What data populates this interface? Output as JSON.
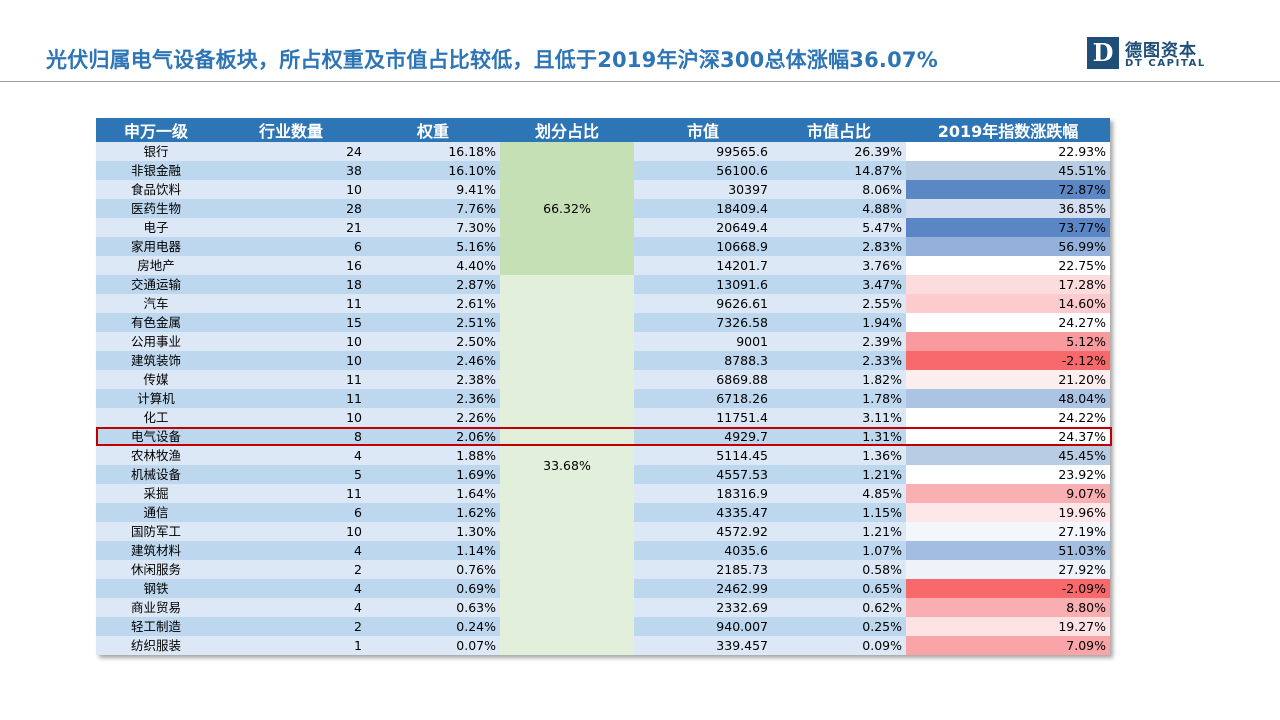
{
  "title": "光伏归属电气设备板块，所占权重及市值占比较低，且低于2019年沪深300总体涨幅36.07%",
  "logo": {
    "mark": "D",
    "cn": "德图资本",
    "en": "DT CAPITAL"
  },
  "colors": {
    "accent": "#2e75b6",
    "highlight_border": "#c00000",
    "share_top": "#c5e0b4",
    "share_bottom": "#e2efda"
  },
  "table": {
    "headers": [
      "申万一级",
      "行业数量",
      "权重",
      "划分占比",
      "市值",
      "市值占比",
      "2019年指数涨跌幅"
    ],
    "share_top": "66.32%",
    "share_bottom": "33.68%",
    "highlighted_row": "电气设备",
    "rows": [
      {
        "name": "银行",
        "count": "24",
        "weight": "16.18%",
        "mcap": "99565.6",
        "mshare": "26.39%",
        "change": "22.93%",
        "change_color": "#ffffff"
      },
      {
        "name": "非银金融",
        "count": "38",
        "weight": "16.10%",
        "mcap": "56100.6",
        "mshare": "14.87%",
        "change": "45.51%",
        "change_color": "#b8cce4"
      },
      {
        "name": "食品饮料",
        "count": "10",
        "weight": "9.41%",
        "mcap": "30397",
        "mshare": "8.06%",
        "change": "72.87%",
        "change_color": "#5b87c5"
      },
      {
        "name": "医药生物",
        "count": "28",
        "weight": "7.76%",
        "mcap": "18409.4",
        "mshare": "4.88%",
        "change": "36.85%",
        "change_color": "#d3dff0"
      },
      {
        "name": "电子",
        "count": "21",
        "weight": "7.30%",
        "mcap": "20649.4",
        "mshare": "5.47%",
        "change": "73.77%",
        "change_color": "#5a86c5"
      },
      {
        "name": "家用电器",
        "count": "6",
        "weight": "5.16%",
        "mcap": "10668.9",
        "mshare": "2.83%",
        "change": "56.99%",
        "change_color": "#93b1da"
      },
      {
        "name": "房地产",
        "count": "16",
        "weight": "4.40%",
        "mcap": "14201.7",
        "mshare": "3.76%",
        "change": "22.75%",
        "change_color": "#ffffff"
      },
      {
        "name": "交通运输",
        "count": "18",
        "weight": "2.87%",
        "mcap": "13091.6",
        "mshare": "3.47%",
        "change": "17.28%",
        "change_color": "#fcdcdd"
      },
      {
        "name": "汽车",
        "count": "11",
        "weight": "2.61%",
        "mcap": "9626.61",
        "mshare": "2.55%",
        "change": "14.60%",
        "change_color": "#fbcbcd"
      },
      {
        "name": "有色金属",
        "count": "15",
        "weight": "2.51%",
        "mcap": "7326.58",
        "mshare": "1.94%",
        "change": "24.27%",
        "change_color": "#ffffff"
      },
      {
        "name": "公用事业",
        "count": "10",
        "weight": "2.50%",
        "mcap": "9001",
        "mshare": "2.39%",
        "change": "5.12%",
        "change_color": "#f89a9e"
      },
      {
        "name": "建筑装饰",
        "count": "10",
        "weight": "2.46%",
        "mcap": "8788.3",
        "mshare": "2.33%",
        "change": "-2.12%",
        "change_color": "#f8696b"
      },
      {
        "name": "传媒",
        "count": "11",
        "weight": "2.38%",
        "mcap": "6869.88",
        "mshare": "1.82%",
        "change": "21.20%",
        "change_color": "#fdeeee"
      },
      {
        "name": "计算机",
        "count": "11",
        "weight": "2.36%",
        "mcap": "6718.26",
        "mshare": "1.78%",
        "change": "48.04%",
        "change_color": "#acc4e4"
      },
      {
        "name": "化工",
        "count": "10",
        "weight": "2.26%",
        "mcap": "11751.4",
        "mshare": "3.11%",
        "change": "24.22%",
        "change_color": "#ffffff"
      },
      {
        "name": "电气设备",
        "count": "8",
        "weight": "2.06%",
        "mcap": "4929.7",
        "mshare": "1.31%",
        "change": "24.37%",
        "change_color": "#ffffff"
      },
      {
        "name": "农林牧渔",
        "count": "4",
        "weight": "1.88%",
        "mcap": "5114.45",
        "mshare": "1.36%",
        "change": "45.45%",
        "change_color": "#b8cce4"
      },
      {
        "name": "机械设备",
        "count": "5",
        "weight": "1.69%",
        "mcap": "4557.53",
        "mshare": "1.21%",
        "change": "23.92%",
        "change_color": "#ffffff"
      },
      {
        "name": "采掘",
        "count": "11",
        "weight": "1.64%",
        "mcap": "18316.9",
        "mshare": "4.85%",
        "change": "9.07%",
        "change_color": "#f9b0b3"
      },
      {
        "name": "通信",
        "count": "6",
        "weight": "1.62%",
        "mcap": "4335.47",
        "mshare": "1.15%",
        "change": "19.96%",
        "change_color": "#fde7e8"
      },
      {
        "name": "国防军工",
        "count": "10",
        "weight": "1.30%",
        "mcap": "4572.92",
        "mshare": "1.21%",
        "change": "27.19%",
        "change_color": "#f3f6fb"
      },
      {
        "name": "建筑材料",
        "count": "4",
        "weight": "1.14%",
        "mcap": "4035.6",
        "mshare": "1.07%",
        "change": "51.03%",
        "change_color": "#a3bde0"
      },
      {
        "name": "休闲服务",
        "count": "2",
        "weight": "0.76%",
        "mcap": "2185.73",
        "mshare": "0.58%",
        "change": "27.92%",
        "change_color": "#eef3fa"
      },
      {
        "name": "钢铁",
        "count": "4",
        "weight": "0.69%",
        "mcap": "2462.99",
        "mshare": "0.65%",
        "change": "-2.09%",
        "change_color": "#f8696b"
      },
      {
        "name": "商业贸易",
        "count": "4",
        "weight": "0.63%",
        "mcap": "2332.69",
        "mshare": "0.62%",
        "change": "8.80%",
        "change_color": "#f9aeb1"
      },
      {
        "name": "轻工制造",
        "count": "2",
        "weight": "0.24%",
        "mcap": "940.007",
        "mshare": "0.25%",
        "change": "19.27%",
        "change_color": "#fde3e4"
      },
      {
        "name": "纺织服装",
        "count": "1",
        "weight": "0.07%",
        "mcap": "339.457",
        "mshare": "0.09%",
        "change": "7.09%",
        "change_color": "#f9a4a7"
      }
    ]
  }
}
